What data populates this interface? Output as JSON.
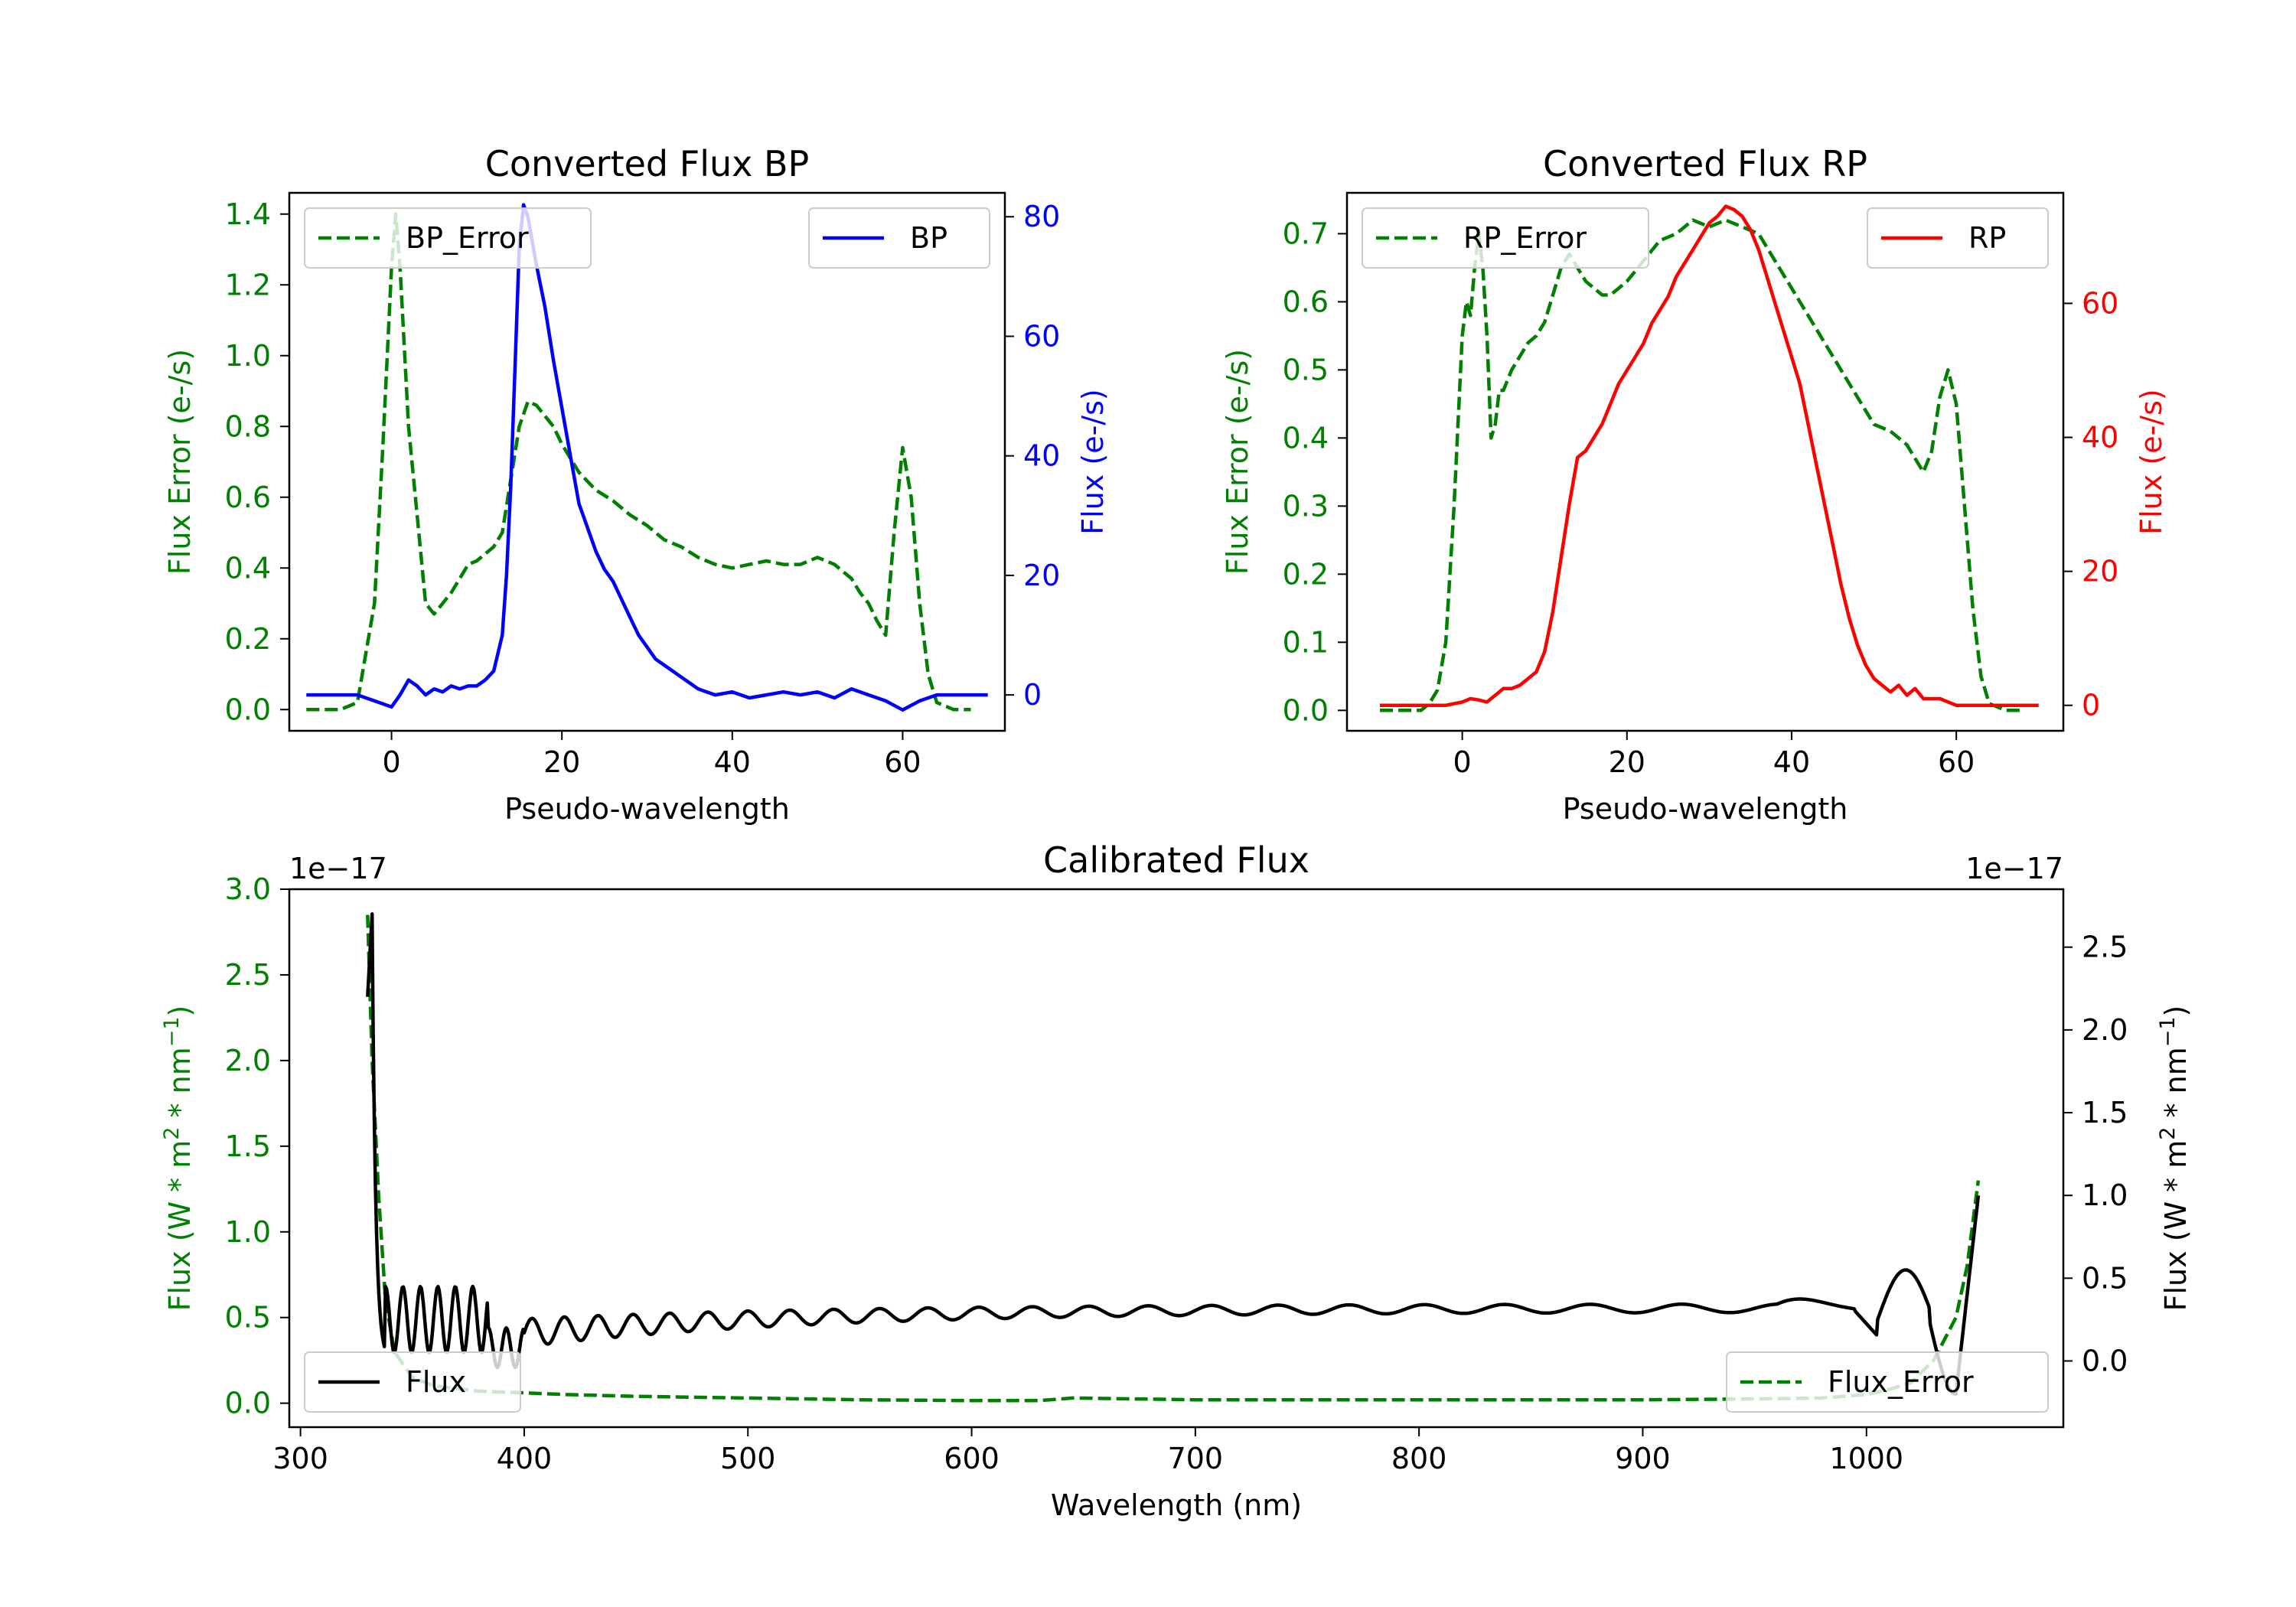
{
  "colors": {
    "green": "#008000",
    "blue": "#0000ff",
    "red": "#ff0000",
    "black": "#000000"
  },
  "chart_data": [
    {
      "type": "line",
      "title": "Converted Flux BP",
      "xlabel": "Pseudo-wavelength",
      "xlim": [
        -12,
        72
      ],
      "xticks": [
        "0",
        "20",
        "40",
        "60"
      ],
      "xtick_values": [
        0,
        20,
        40,
        60
      ],
      "left_axis": {
        "label": "Flux Error (e-/s)",
        "color": "green",
        "ylim": [
          -0.06,
          1.46
        ],
        "ticks": [
          "0.0",
          "0.2",
          "0.4",
          "0.6",
          "0.8",
          "1.0",
          "1.2",
          "1.4"
        ],
        "tick_values": [
          0,
          0.2,
          0.4,
          0.6,
          0.8,
          1.0,
          1.2,
          1.4
        ]
      },
      "right_axis": {
        "label": "Flux (e-/s)",
        "color": "blue",
        "ylim": [
          -6,
          84
        ],
        "ticks": [
          "0",
          "20",
          "40",
          "60",
          "80"
        ],
        "tick_values": [
          0,
          20,
          40,
          60,
          80
        ]
      },
      "series": [
        {
          "name": "BP_Error",
          "axis": "left",
          "style": "dashed",
          "color": "green",
          "x": [
            -10,
            -6,
            -4,
            -2,
            -1,
            0,
            0.5,
            1,
            2,
            3,
            4,
            5,
            6,
            7,
            8,
            9,
            10,
            11,
            12,
            13,
            14,
            15,
            16,
            17,
            18,
            19,
            20,
            22,
            24,
            26,
            28,
            30,
            32,
            34,
            36,
            38,
            40,
            42,
            44,
            46,
            48,
            50,
            52,
            54,
            55,
            56,
            57,
            58,
            59,
            60,
            61,
            62,
            63,
            64,
            66,
            68
          ],
          "y": [
            0.0,
            0.0,
            0.02,
            0.3,
            0.75,
            1.25,
            1.4,
            1.25,
            0.8,
            0.55,
            0.3,
            0.27,
            0.3,
            0.33,
            0.37,
            0.41,
            0.42,
            0.44,
            0.46,
            0.5,
            0.65,
            0.8,
            0.87,
            0.86,
            0.83,
            0.8,
            0.75,
            0.67,
            0.62,
            0.59,
            0.55,
            0.52,
            0.48,
            0.46,
            0.43,
            0.41,
            0.4,
            0.41,
            0.42,
            0.41,
            0.41,
            0.43,
            0.41,
            0.37,
            0.33,
            0.3,
            0.25,
            0.21,
            0.5,
            0.74,
            0.6,
            0.3,
            0.1,
            0.02,
            0.0,
            0.0
          ]
        },
        {
          "name": "BP",
          "axis": "right",
          "style": "solid",
          "color": "blue",
          "x": [
            -10,
            -4,
            -2,
            0,
            1,
            2,
            3,
            4,
            5,
            6,
            7,
            8,
            9,
            10,
            11,
            12,
            13,
            13.5,
            14,
            14.5,
            15,
            15.5,
            16,
            17,
            18,
            19,
            20,
            21,
            22,
            23,
            24,
            25,
            26,
            27,
            28,
            29,
            30,
            31,
            32,
            33,
            34,
            35,
            36,
            37,
            38,
            40,
            42,
            44,
            46,
            48,
            50,
            52,
            54,
            56,
            58,
            60,
            62,
            64,
            66,
            70
          ],
          "y": [
            0,
            0,
            -1,
            -2,
            0,
            2.5,
            1.5,
            0,
            1,
            0.5,
            1.5,
            1,
            1.5,
            1.5,
            2.5,
            4,
            10,
            20,
            35,
            55,
            75,
            82,
            80,
            72,
            65,
            56,
            48,
            40,
            32,
            28,
            24,
            21,
            19,
            16,
            13,
            10,
            8,
            6,
            5,
            4,
            3,
            2,
            1,
            0.5,
            0,
            0.5,
            -0.5,
            0,
            0.5,
            0,
            0.5,
            -0.5,
            1,
            0,
            -1,
            -2.5,
            -1,
            0,
            0,
            0
          ]
        }
      ],
      "legend": [
        {
          "label": "BP_Error",
          "location": "upper left"
        },
        {
          "label": "BP",
          "location": "upper right"
        }
      ]
    },
    {
      "type": "line",
      "title": "Converted Flux RP",
      "xlabel": "Pseudo-wavelength",
      "xlim": [
        -14,
        73
      ],
      "xticks": [
        "0",
        "20",
        "40",
        "60"
      ],
      "xtick_values": [
        0,
        20,
        40,
        60
      ],
      "left_axis": {
        "label": "Flux Error (e-/s)",
        "color": "green",
        "ylim": [
          -0.03,
          0.76
        ],
        "ticks": [
          "0.0",
          "0.1",
          "0.2",
          "0.3",
          "0.4",
          "0.5",
          "0.6",
          "0.7"
        ],
        "tick_values": [
          0,
          0.1,
          0.2,
          0.3,
          0.4,
          0.5,
          0.6,
          0.7
        ]
      },
      "right_axis": {
        "label": "Flux (e-/s)",
        "color": "red",
        "ylim": [
          -3.8,
          76.5
        ],
        "ticks": [
          "0",
          "20",
          "40",
          "60"
        ],
        "tick_values": [
          0,
          20,
          40,
          60
        ]
      },
      "series": [
        {
          "name": "RP_Error",
          "axis": "left",
          "style": "dashed",
          "color": "green",
          "x": [
            -10,
            -5,
            -4,
            -3,
            -2,
            -1,
            0,
            0.5,
            1,
            1.5,
            2,
            2.5,
            3,
            3.5,
            4,
            4.5,
            5,
            6,
            7,
            8,
            9,
            10,
            11,
            12,
            13,
            14,
            15,
            16,
            17,
            18,
            19,
            20,
            22,
            24,
            26,
            28,
            30,
            32,
            34,
            36,
            38,
            40,
            42,
            44,
            46,
            48,
            50,
            52,
            54,
            55,
            56,
            57,
            58,
            59,
            60,
            61,
            62,
            63,
            64,
            66,
            68
          ],
          "y": [
            0.0,
            0.0,
            0.01,
            0.03,
            0.1,
            0.3,
            0.55,
            0.6,
            0.58,
            0.65,
            0.7,
            0.65,
            0.55,
            0.4,
            0.42,
            0.47,
            0.47,
            0.5,
            0.52,
            0.54,
            0.55,
            0.57,
            0.61,
            0.65,
            0.67,
            0.65,
            0.63,
            0.62,
            0.61,
            0.61,
            0.62,
            0.63,
            0.66,
            0.69,
            0.7,
            0.72,
            0.71,
            0.72,
            0.71,
            0.7,
            0.66,
            0.62,
            0.58,
            0.54,
            0.5,
            0.46,
            0.42,
            0.41,
            0.39,
            0.37,
            0.35,
            0.38,
            0.46,
            0.5,
            0.45,
            0.3,
            0.15,
            0.05,
            0.01,
            0.0,
            0.0
          ]
        },
        {
          "name": "RP",
          "axis": "right",
          "style": "solid",
          "color": "red",
          "x": [
            -10,
            -2,
            0,
            1,
            2,
            3,
            4,
            5,
            6,
            7,
            8,
            9,
            10,
            11,
            12,
            13,
            14,
            15,
            16,
            17,
            18,
            19,
            20,
            21,
            22,
            23,
            24,
            25,
            26,
            27,
            28,
            29,
            30,
            31,
            32,
            33,
            34,
            35,
            36,
            37,
            38,
            39,
            40,
            41,
            42,
            43,
            44,
            45,
            46,
            47,
            48,
            49,
            50,
            51,
            52,
            53,
            54,
            55,
            56,
            58,
            60,
            62,
            64,
            66,
            70
          ],
          "y": [
            0,
            0,
            0.5,
            1,
            0.8,
            0.5,
            1.5,
            2.5,
            2.5,
            3,
            4,
            5,
            8,
            14,
            22,
            30,
            37,
            38,
            40,
            42,
            45,
            48,
            50,
            52,
            54,
            57,
            59,
            61,
            64,
            66,
            68,
            70,
            72,
            73,
            74.5,
            74,
            73,
            71,
            68,
            64,
            60,
            56,
            52,
            48,
            42,
            36,
            30,
            24,
            18,
            13,
            9,
            6,
            4,
            3,
            2,
            3,
            1.5,
            2.5,
            1,
            1,
            0,
            0,
            0,
            0,
            0
          ]
        }
      ],
      "legend": [
        {
          "label": "RP_Error",
          "location": "upper left"
        },
        {
          "label": "RP",
          "location": "upper right"
        }
      ]
    },
    {
      "type": "line",
      "title": "Calibrated Flux",
      "xlabel": "Wavelength (nm)",
      "xlim": [
        295,
        1088
      ],
      "xticks": [
        "300",
        "400",
        "500",
        "600",
        "700",
        "800",
        "900",
        "1000"
      ],
      "xtick_values": [
        300,
        400,
        500,
        600,
        700,
        800,
        900,
        1000
      ],
      "left_axis": {
        "label_parts": [
          "Flux (W * m",
          "2",
          " * nm",
          "−1",
          ")"
        ],
        "offset_label": "1e−17",
        "color": "green",
        "ylim": [
          -0.14,
          3.0
        ],
        "ticks": [
          "0.0",
          "0.5",
          "1.0",
          "1.5",
          "2.0",
          "2.5",
          "3.0"
        ],
        "tick_values": [
          0,
          0.5,
          1.0,
          1.5,
          2.0,
          2.5,
          3.0
        ]
      },
      "right_axis": {
        "label_parts": [
          "Flux (W * m",
          "2",
          " * nm",
          "−1",
          ")"
        ],
        "offset_label": "1e−17",
        "color": "black",
        "ylim": [
          -0.4,
          2.85
        ],
        "ticks": [
          "0.0",
          "0.5",
          "1.0",
          "1.5",
          "2.0",
          "2.5"
        ],
        "tick_values": [
          0,
          0.5,
          1.0,
          1.5,
          2.0,
          2.5
        ]
      },
      "series": [
        {
          "name": "Flux_Error",
          "axis": "left",
          "style": "dashed",
          "color": "green",
          "x": [
            330,
            332,
            335,
            338,
            342,
            350,
            360,
            380,
            400,
            420,
            450,
            500,
            550,
            600,
            630,
            640,
            645,
            700,
            800,
            900,
            950,
            980,
            1000,
            1010,
            1020,
            1030,
            1040,
            1045,
            1050
          ],
          "y": [
            2.85,
            2.0,
            1.2,
            0.6,
            0.3,
            0.15,
            0.1,
            0.07,
            0.06,
            0.05,
            0.04,
            0.03,
            0.02,
            0.015,
            0.015,
            0.025,
            0.03,
            0.02,
            0.02,
            0.02,
            0.025,
            0.03,
            0.05,
            0.08,
            0.12,
            0.25,
            0.5,
            0.8,
            1.3
          ]
        },
        {
          "name": "Flux",
          "axis": "right",
          "style": "solid",
          "color": "black",
          "generator": "calibrated_flux"
        }
      ],
      "legend": [
        {
          "label": "Flux",
          "location": "lower left"
        },
        {
          "label": "Flux_Error",
          "location": "lower right"
        }
      ]
    }
  ]
}
